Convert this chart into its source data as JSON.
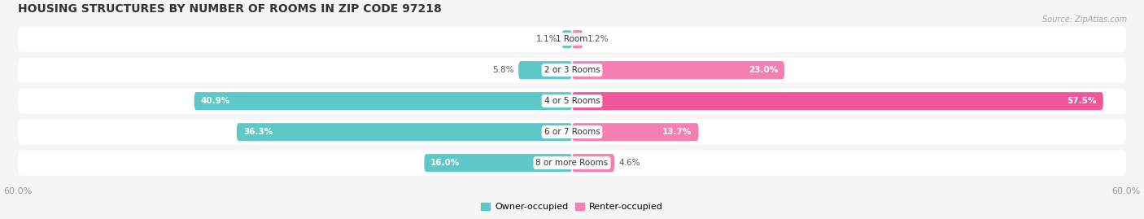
{
  "title": "HOUSING STRUCTURES BY NUMBER OF ROOMS IN ZIP CODE 97218",
  "source": "Source: ZipAtlas.com",
  "categories": [
    "1 Room",
    "2 or 3 Rooms",
    "4 or 5 Rooms",
    "6 or 7 Rooms",
    "8 or more Rooms"
  ],
  "owner_values": [
    1.1,
    5.8,
    40.9,
    36.3,
    16.0
  ],
  "renter_values": [
    1.2,
    23.0,
    57.5,
    13.7,
    4.6
  ],
  "owner_color": "#5ec8c8",
  "renter_color": "#f67fb2",
  "renter_color_strong": "#f0579a",
  "axis_max": 60.0,
  "background_color": "#f5f5f5",
  "row_bg_color": "#ebebeb",
  "white_threshold_owner": 10.0,
  "white_threshold_renter": 10.0,
  "bar_height": 0.58,
  "figsize": [
    14.06,
    2.69
  ],
  "dpi": 100,
  "title_fontsize": 10,
  "label_fontsize": 7.5,
  "value_fontsize": 7.5,
  "tick_fontsize": 8,
  "legend_fontsize": 8
}
